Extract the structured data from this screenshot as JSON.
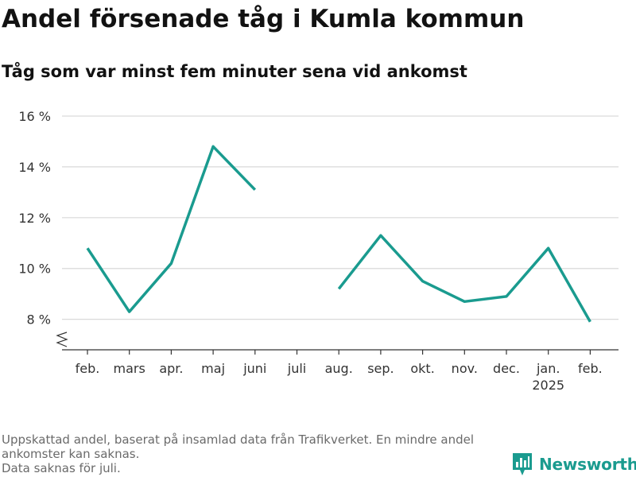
{
  "title": "Andel försenade tåg i Kumla kommun",
  "subtitle": "Tåg som var minst fem minuter sena vid ankomst",
  "colors": {
    "line": "#1a9b8f",
    "grid": "#d9d9d9",
    "axis": "#333333",
    "brand": "#1a9b8f"
  },
  "chart_data": {
    "type": "line",
    "title": "Andel försenade tåg i Kumla kommun",
    "subtitle": "Tåg som var minst fem minuter sena vid ankomst",
    "categories": [
      "feb.",
      "mars",
      "apr.",
      "maj",
      "juni",
      "juli",
      "aug.",
      "sep.",
      "okt.",
      "nov.",
      "dec.",
      "jan.",
      "feb."
    ],
    "category_sublabels": [
      "",
      "",
      "",
      "",
      "",
      "",
      "",
      "",
      "",
      "",
      "",
      "2025",
      ""
    ],
    "series": [
      {
        "values": [
          10.8,
          8.3,
          10.2,
          14.8,
          13.1,
          null,
          9.2,
          11.3,
          9.5,
          8.7,
          8.9,
          10.8,
          7.9
        ]
      }
    ],
    "yticks": [
      8,
      10,
      12,
      14,
      16
    ],
    "ytick_labels": [
      "8 %",
      "10 %",
      "12 %",
      "14 %",
      "16 %"
    ],
    "ylim": [
      6.8,
      16.5
    ],
    "y_axis_break": true,
    "grid": true,
    "xlabel": "",
    "ylabel": ""
  },
  "footnote": {
    "line1": "Uppskattad andel, baserat på insamlad data från Trafikverket. En mindre andel ankomster kan saknas.",
    "line2": "Data saknas för juli."
  },
  "brand": {
    "name": "Newsworthy",
    "icon": "newsworthy-logo-icon"
  }
}
